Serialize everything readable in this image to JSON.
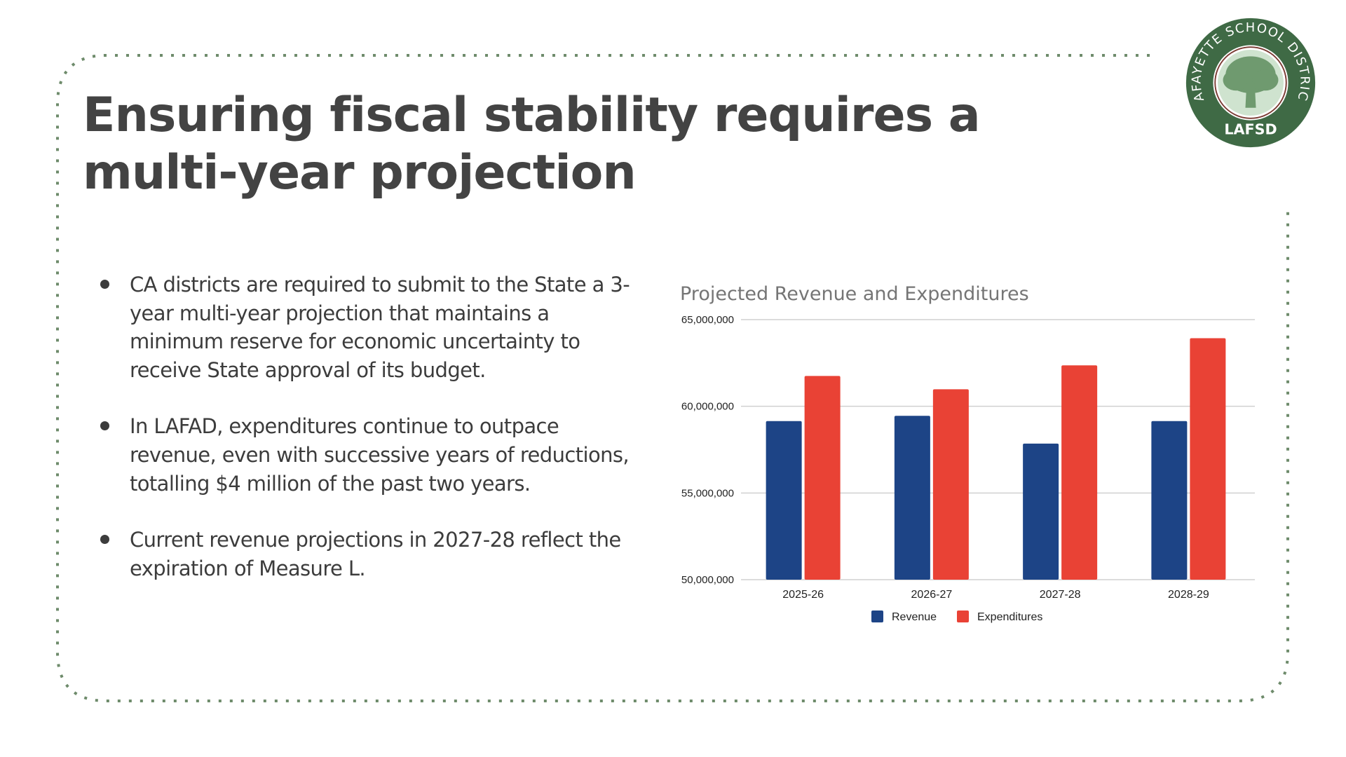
{
  "slide": {
    "title": "Ensuring fiscal stability requires a multi-year projection",
    "title_lines": [
      "Ensuring fiscal stability requires a",
      "multi-year projection"
    ],
    "bullets": [
      "CA districts are required to submit to the State a 3-year multi-year projection that maintains a minimum reserve for economic uncertainty to receive State approval of its budget.",
      "In LAFAD, expenditures continue to outpace revenue, even with successive years of reductions, totalling $4 million of the past two years.",
      "Current revenue projections in 2027-28 reflect the expiration of Measure L."
    ],
    "border_color": "#6e8b6b"
  },
  "logo": {
    "icon": "tree-icon",
    "ring_text": "LAFAYETTE SCHOOL DISTRICT",
    "abbreviation": "LAFSD",
    "colors": {
      "ring": "#3f6a45",
      "inner": "#cfe3cf",
      "tree": "#6f9a6f",
      "accent": "#7a3a32"
    }
  },
  "chart_data": {
    "type": "bar",
    "title": "Projected Revenue and Expenditures",
    "xlabel": "",
    "ylabel": "",
    "categories": [
      "2025-26",
      "2026-27",
      "2027-28",
      "2028-29"
    ],
    "series": [
      {
        "name": "Revenue",
        "color": "#1d4486",
        "values": [
          59150000,
          59450000,
          57850000,
          59150000
        ]
      },
      {
        "name": "Expenditures",
        "color": "#e94235",
        "values": [
          61750000,
          60980000,
          62360000,
          63930000
        ]
      }
    ],
    "ylim": [
      50000000,
      65000000
    ],
    "yticks": [
      50000000,
      55000000,
      60000000,
      65000000
    ],
    "ytick_labels": [
      "50,000,000",
      "55,000,000",
      "60,000,000",
      "65,000,000"
    ],
    "grid": true,
    "legend_position": "bottom-center"
  }
}
